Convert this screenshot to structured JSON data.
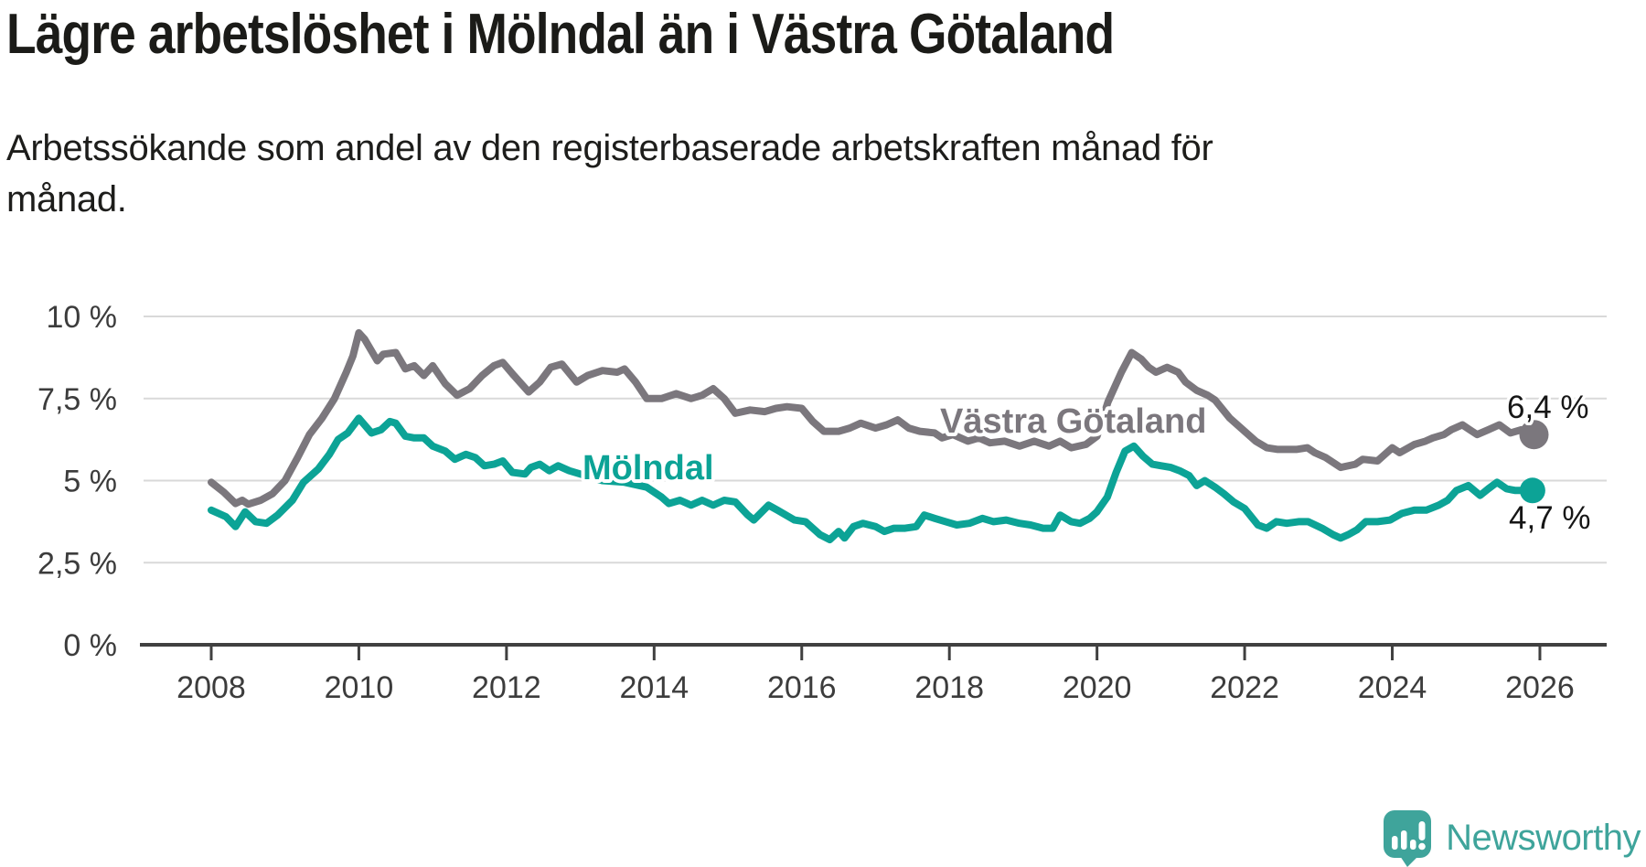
{
  "header": {
    "title": "Lägre arbetslöshet i Mölndal än i Västra Götaland",
    "subtitle": "Arbetssökande som andel av den registerbaserade arbetskraften månad för månad."
  },
  "chart_data": {
    "type": "line",
    "unit": "%",
    "grid": "horizontal",
    "gridline_color": "#d9d9d9",
    "axis_color": "#404040",
    "axis_text_color": "#3c3c3c",
    "legend_position": "inline-labels",
    "x_axis": {
      "range": [
        2007.1,
        2026.9
      ],
      "ticks": [
        2008,
        2010,
        2012,
        2014,
        2016,
        2018,
        2020,
        2022,
        2024,
        2026
      ],
      "tick_labels": [
        "2008",
        "2010",
        "2012",
        "2014",
        "2016",
        "2018",
        "2020",
        "2022",
        "2024",
        "2026"
      ]
    },
    "y_axis": {
      "range": [
        0,
        10
      ],
      "ticks": [
        0,
        2.5,
        5,
        7.5,
        10
      ],
      "tick_labels": [
        "0 %",
        "2,5 %",
        "5 %",
        "7,5 %",
        "10 %"
      ]
    },
    "series": [
      {
        "name": "Västra Götaland",
        "color": "#7b777d",
        "end_label": "6,4 %",
        "end_value": 6.4,
        "label_anchor": {
          "x": 2017.88,
          "y": 6.5
        },
        "points": [
          [
            2008.0,
            4.95
          ],
          [
            2008.17,
            4.65
          ],
          [
            2008.33,
            4.3
          ],
          [
            2008.42,
            4.4
          ],
          [
            2008.5,
            4.28
          ],
          [
            2008.67,
            4.4
          ],
          [
            2008.83,
            4.6
          ],
          [
            2009.0,
            5.0
          ],
          [
            2009.17,
            5.7
          ],
          [
            2009.33,
            6.4
          ],
          [
            2009.5,
            6.9
          ],
          [
            2009.67,
            7.5
          ],
          [
            2009.83,
            8.3
          ],
          [
            2009.92,
            8.8
          ],
          [
            2010.0,
            9.5
          ],
          [
            2010.08,
            9.3
          ],
          [
            2010.25,
            8.65
          ],
          [
            2010.33,
            8.85
          ],
          [
            2010.5,
            8.9
          ],
          [
            2010.63,
            8.4
          ],
          [
            2010.75,
            8.5
          ],
          [
            2010.88,
            8.2
          ],
          [
            2011.0,
            8.5
          ],
          [
            2011.17,
            7.95
          ],
          [
            2011.33,
            7.6
          ],
          [
            2011.5,
            7.8
          ],
          [
            2011.67,
            8.2
          ],
          [
            2011.83,
            8.5
          ],
          [
            2011.95,
            8.6
          ],
          [
            2012.1,
            8.2
          ],
          [
            2012.3,
            7.7
          ],
          [
            2012.45,
            8.0
          ],
          [
            2012.6,
            8.45
          ],
          [
            2012.75,
            8.55
          ],
          [
            2012.95,
            8.0
          ],
          [
            2013.1,
            8.2
          ],
          [
            2013.3,
            8.35
          ],
          [
            2013.5,
            8.3
          ],
          [
            2013.6,
            8.4
          ],
          [
            2013.75,
            8.0
          ],
          [
            2013.9,
            7.5
          ],
          [
            2014.1,
            7.5
          ],
          [
            2014.3,
            7.65
          ],
          [
            2014.5,
            7.5
          ],
          [
            2014.65,
            7.6
          ],
          [
            2014.8,
            7.8
          ],
          [
            2014.95,
            7.5
          ],
          [
            2015.1,
            7.05
          ],
          [
            2015.3,
            7.15
          ],
          [
            2015.5,
            7.1
          ],
          [
            2015.65,
            7.2
          ],
          [
            2015.8,
            7.25
          ],
          [
            2016.0,
            7.2
          ],
          [
            2016.15,
            6.8
          ],
          [
            2016.3,
            6.5
          ],
          [
            2016.5,
            6.5
          ],
          [
            2016.65,
            6.6
          ],
          [
            2016.8,
            6.75
          ],
          [
            2017.0,
            6.6
          ],
          [
            2017.15,
            6.7
          ],
          [
            2017.3,
            6.85
          ],
          [
            2017.45,
            6.6
          ],
          [
            2017.6,
            6.5
          ],
          [
            2017.8,
            6.45
          ],
          [
            2017.9,
            6.3
          ],
          [
            2018.05,
            6.4
          ],
          [
            2018.25,
            6.2
          ],
          [
            2018.4,
            6.3
          ],
          [
            2018.55,
            6.15
          ],
          [
            2018.75,
            6.2
          ],
          [
            2018.95,
            6.05
          ],
          [
            2019.15,
            6.2
          ],
          [
            2019.35,
            6.05
          ],
          [
            2019.5,
            6.2
          ],
          [
            2019.65,
            6.0
          ],
          [
            2019.85,
            6.1
          ],
          [
            2020.0,
            6.35
          ],
          [
            2020.15,
            7.4
          ],
          [
            2020.33,
            8.3
          ],
          [
            2020.47,
            8.9
          ],
          [
            2020.6,
            8.7
          ],
          [
            2020.7,
            8.45
          ],
          [
            2020.8,
            8.3
          ],
          [
            2020.95,
            8.45
          ],
          [
            2021.1,
            8.3
          ],
          [
            2021.2,
            8.0
          ],
          [
            2021.35,
            7.75
          ],
          [
            2021.5,
            7.6
          ],
          [
            2021.6,
            7.45
          ],
          [
            2021.8,
            6.9
          ],
          [
            2022.0,
            6.5
          ],
          [
            2022.15,
            6.2
          ],
          [
            2022.3,
            6.0
          ],
          [
            2022.45,
            5.95
          ],
          [
            2022.7,
            5.95
          ],
          [
            2022.85,
            6.0
          ],
          [
            2022.95,
            5.85
          ],
          [
            2023.1,
            5.7
          ],
          [
            2023.3,
            5.4
          ],
          [
            2023.5,
            5.5
          ],
          [
            2023.6,
            5.65
          ],
          [
            2023.8,
            5.6
          ],
          [
            2024.0,
            6.0
          ],
          [
            2024.1,
            5.85
          ],
          [
            2024.3,
            6.1
          ],
          [
            2024.45,
            6.2
          ],
          [
            2024.55,
            6.3
          ],
          [
            2024.7,
            6.4
          ],
          [
            2024.8,
            6.55
          ],
          [
            2024.95,
            6.7
          ],
          [
            2025.05,
            6.55
          ],
          [
            2025.15,
            6.4
          ],
          [
            2025.3,
            6.55
          ],
          [
            2025.45,
            6.7
          ],
          [
            2025.6,
            6.45
          ],
          [
            2025.75,
            6.55
          ],
          [
            2025.92,
            6.4
          ]
        ]
      },
      {
        "name": "Mölndal",
        "color": "#0ca396",
        "end_label": "4,7 %",
        "end_value": 4.7,
        "label_anchor": {
          "x": 2013.03,
          "y": 5.05
        },
        "points": [
          [
            2008.0,
            4.1
          ],
          [
            2008.2,
            3.9
          ],
          [
            2008.33,
            3.6
          ],
          [
            2008.46,
            4.05
          ],
          [
            2008.6,
            3.75
          ],
          [
            2008.75,
            3.7
          ],
          [
            2008.9,
            3.95
          ],
          [
            2009.1,
            4.4
          ],
          [
            2009.25,
            4.95
          ],
          [
            2009.45,
            5.35
          ],
          [
            2009.6,
            5.8
          ],
          [
            2009.72,
            6.25
          ],
          [
            2009.85,
            6.45
          ],
          [
            2010.0,
            6.9
          ],
          [
            2010.17,
            6.45
          ],
          [
            2010.3,
            6.55
          ],
          [
            2010.42,
            6.8
          ],
          [
            2010.5,
            6.75
          ],
          [
            2010.63,
            6.35
          ],
          [
            2010.75,
            6.3
          ],
          [
            2010.88,
            6.3
          ],
          [
            2011.0,
            6.05
          ],
          [
            2011.17,
            5.9
          ],
          [
            2011.3,
            5.65
          ],
          [
            2011.45,
            5.8
          ],
          [
            2011.58,
            5.7
          ],
          [
            2011.7,
            5.45
          ],
          [
            2011.83,
            5.5
          ],
          [
            2011.95,
            5.6
          ],
          [
            2012.08,
            5.25
          ],
          [
            2012.25,
            5.2
          ],
          [
            2012.33,
            5.4
          ],
          [
            2012.45,
            5.5
          ],
          [
            2012.58,
            5.3
          ],
          [
            2012.7,
            5.45
          ],
          [
            2012.85,
            5.3
          ],
          [
            2013.0,
            5.2
          ],
          [
            2013.3,
            5.0
          ],
          [
            2013.6,
            4.95
          ],
          [
            2013.9,
            4.8
          ],
          [
            2014.1,
            4.5
          ],
          [
            2014.2,
            4.3
          ],
          [
            2014.35,
            4.4
          ],
          [
            2014.5,
            4.25
          ],
          [
            2014.65,
            4.4
          ],
          [
            2014.8,
            4.25
          ],
          [
            2014.95,
            4.4
          ],
          [
            2015.1,
            4.35
          ],
          [
            2015.27,
            3.95
          ],
          [
            2015.35,
            3.8
          ],
          [
            2015.55,
            4.25
          ],
          [
            2015.67,
            4.1
          ],
          [
            2015.9,
            3.8
          ],
          [
            2016.05,
            3.75
          ],
          [
            2016.25,
            3.35
          ],
          [
            2016.38,
            3.2
          ],
          [
            2016.5,
            3.45
          ],
          [
            2016.58,
            3.25
          ],
          [
            2016.7,
            3.6
          ],
          [
            2016.83,
            3.7
          ],
          [
            2017.0,
            3.6
          ],
          [
            2017.12,
            3.45
          ],
          [
            2017.25,
            3.55
          ],
          [
            2017.4,
            3.55
          ],
          [
            2017.55,
            3.6
          ],
          [
            2017.66,
            3.95
          ],
          [
            2017.8,
            3.85
          ],
          [
            2017.95,
            3.75
          ],
          [
            2018.1,
            3.65
          ],
          [
            2018.27,
            3.7
          ],
          [
            2018.45,
            3.85
          ],
          [
            2018.6,
            3.75
          ],
          [
            2018.77,
            3.8
          ],
          [
            2018.95,
            3.7
          ],
          [
            2019.1,
            3.65
          ],
          [
            2019.27,
            3.55
          ],
          [
            2019.4,
            3.55
          ],
          [
            2019.5,
            3.95
          ],
          [
            2019.65,
            3.75
          ],
          [
            2019.77,
            3.7
          ],
          [
            2019.9,
            3.85
          ],
          [
            2020.0,
            4.05
          ],
          [
            2020.14,
            4.5
          ],
          [
            2020.26,
            5.25
          ],
          [
            2020.38,
            5.9
          ],
          [
            2020.5,
            6.05
          ],
          [
            2020.62,
            5.75
          ],
          [
            2020.75,
            5.5
          ],
          [
            2020.87,
            5.45
          ],
          [
            2021.0,
            5.4
          ],
          [
            2021.12,
            5.3
          ],
          [
            2021.25,
            5.15
          ],
          [
            2021.35,
            4.85
          ],
          [
            2021.46,
            5.0
          ],
          [
            2021.6,
            4.8
          ],
          [
            2021.72,
            4.6
          ],
          [
            2021.85,
            4.35
          ],
          [
            2022.0,
            4.15
          ],
          [
            2022.18,
            3.65
          ],
          [
            2022.3,
            3.55
          ],
          [
            2022.43,
            3.75
          ],
          [
            2022.57,
            3.7
          ],
          [
            2022.73,
            3.75
          ],
          [
            2022.86,
            3.75
          ],
          [
            2023.05,
            3.55
          ],
          [
            2023.2,
            3.35
          ],
          [
            2023.3,
            3.25
          ],
          [
            2023.4,
            3.35
          ],
          [
            2023.52,
            3.5
          ],
          [
            2023.64,
            3.75
          ],
          [
            2023.8,
            3.75
          ],
          [
            2023.97,
            3.8
          ],
          [
            2024.13,
            4.0
          ],
          [
            2024.3,
            4.1
          ],
          [
            2024.46,
            4.1
          ],
          [
            2024.63,
            4.25
          ],
          [
            2024.75,
            4.4
          ],
          [
            2024.87,
            4.7
          ],
          [
            2025.03,
            4.85
          ],
          [
            2025.19,
            4.55
          ],
          [
            2025.3,
            4.75
          ],
          [
            2025.42,
            4.95
          ],
          [
            2025.55,
            4.75
          ],
          [
            2025.67,
            4.7
          ],
          [
            2025.9,
            4.7
          ]
        ]
      }
    ]
  },
  "footer": {
    "brand": "Newsworthy",
    "logo_color": "#3fa49b"
  }
}
